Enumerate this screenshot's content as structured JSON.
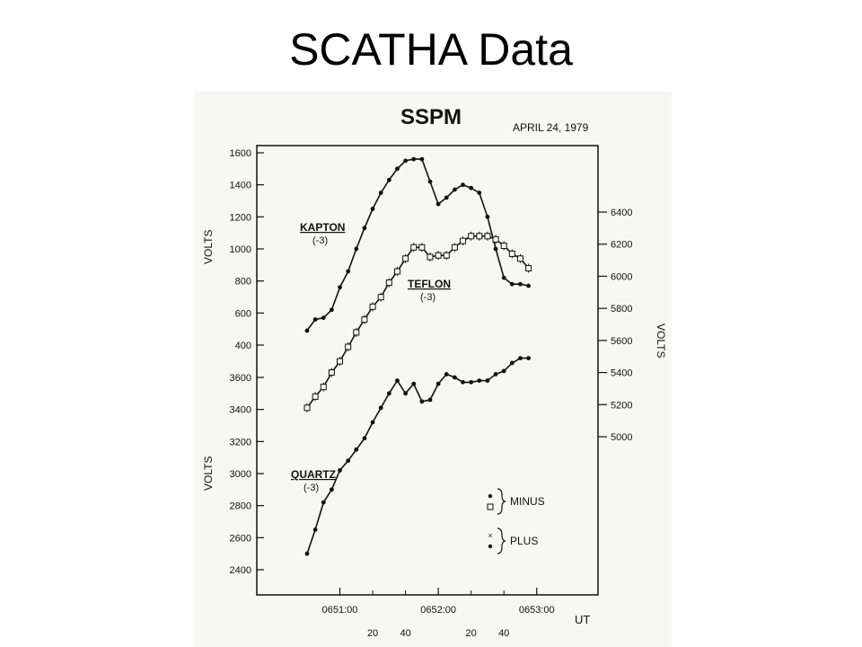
{
  "slide": {
    "title": "SCATHA Data"
  },
  "chart_data": {
    "type": "line",
    "title": "SSPM",
    "date": "APRIL 24, 1979",
    "xlabel": "UT",
    "x_ticks": [
      "0651:00",
      "0652:00",
      "0653:00"
    ],
    "x_minor_ticks": [
      "20",
      "40",
      "20",
      "40"
    ],
    "left_axis_upper": {
      "label": "VOLTS",
      "ticks": [
        "1600",
        "1400",
        "1200",
        "1000",
        "800",
        "600",
        "400"
      ],
      "ylim": [
        400,
        1600
      ]
    },
    "left_axis_lower": {
      "label": "VOLTS",
      "ticks": [
        "3600",
        "3400",
        "3200",
        "3000",
        "2800",
        "2600",
        "2400"
      ],
      "ylim": [
        2400,
        3600
      ]
    },
    "right_axis": {
      "label": "VOLTS",
      "ticks": [
        "6400",
        "6200",
        "6000",
        "5800",
        "5600",
        "5400",
        "5200",
        "5000"
      ],
      "ylim": [
        5000,
        6400
      ]
    },
    "xlim": [
      0,
      150
    ],
    "x_unit": "seconds after 0650:40 UT",
    "series": [
      {
        "name": "KAPTON",
        "sublabel": "(-3)",
        "axis": "left_upper",
        "marker": "dot",
        "x": [
          0,
          5,
          10,
          15,
          20,
          25,
          30,
          35,
          40,
          45,
          50,
          55,
          60,
          65,
          70,
          75,
          80,
          85,
          90,
          95,
          100,
          105,
          110,
          115,
          120,
          125,
          130,
          135
        ],
        "y": [
          490,
          560,
          570,
          620,
          760,
          860,
          1000,
          1130,
          1250,
          1350,
          1430,
          1500,
          1550,
          1560,
          1560,
          1420,
          1280,
          1320,
          1370,
          1400,
          1380,
          1350,
          1200,
          1000,
          820,
          780,
          780,
          770
        ]
      },
      {
        "name": "TEFLON",
        "sublabel": "(-3)",
        "axis": "right",
        "marker": "square-errorbar",
        "x": [
          0,
          5,
          10,
          15,
          20,
          25,
          30,
          35,
          40,
          45,
          50,
          55,
          60,
          65,
          70,
          75,
          80,
          85,
          90,
          95,
          100,
          105,
          110,
          115,
          120,
          125,
          130,
          135
        ],
        "y": [
          5180,
          5250,
          5310,
          5400,
          5470,
          5560,
          5650,
          5730,
          5810,
          5870,
          5960,
          6030,
          6110,
          6180,
          6180,
          6120,
          6130,
          6130,
          6180,
          6220,
          6250,
          6250,
          6250,
          6230,
          6190,
          6140,
          6110,
          6050
        ]
      },
      {
        "name": "QUARTZ",
        "sublabel": "(-3)",
        "axis": "left_lower",
        "marker": "dot",
        "x": [
          0,
          5,
          10,
          15,
          20,
          25,
          30,
          35,
          40,
          45,
          50,
          55,
          60,
          65,
          70,
          75,
          80,
          85,
          90,
          95,
          100,
          105,
          110,
          115,
          120,
          125,
          130,
          135
        ],
        "y": [
          2500,
          2650,
          2820,
          2900,
          3020,
          3080,
          3150,
          3220,
          3320,
          3410,
          3500,
          3580,
          3500,
          3560,
          3450,
          3460,
          3560,
          3620,
          3600,
          3570,
          3570,
          3580,
          3580,
          3620,
          3640,
          3690,
          3720,
          3720
        ]
      }
    ],
    "legend": {
      "position": "bottom-right",
      "entries": [
        {
          "label": "MINUS",
          "markers": [
            "dot",
            "square"
          ]
        },
        {
          "label": "PLUS",
          "markers": [
            "cross",
            "dot"
          ]
        }
      ]
    },
    "grid": false
  }
}
